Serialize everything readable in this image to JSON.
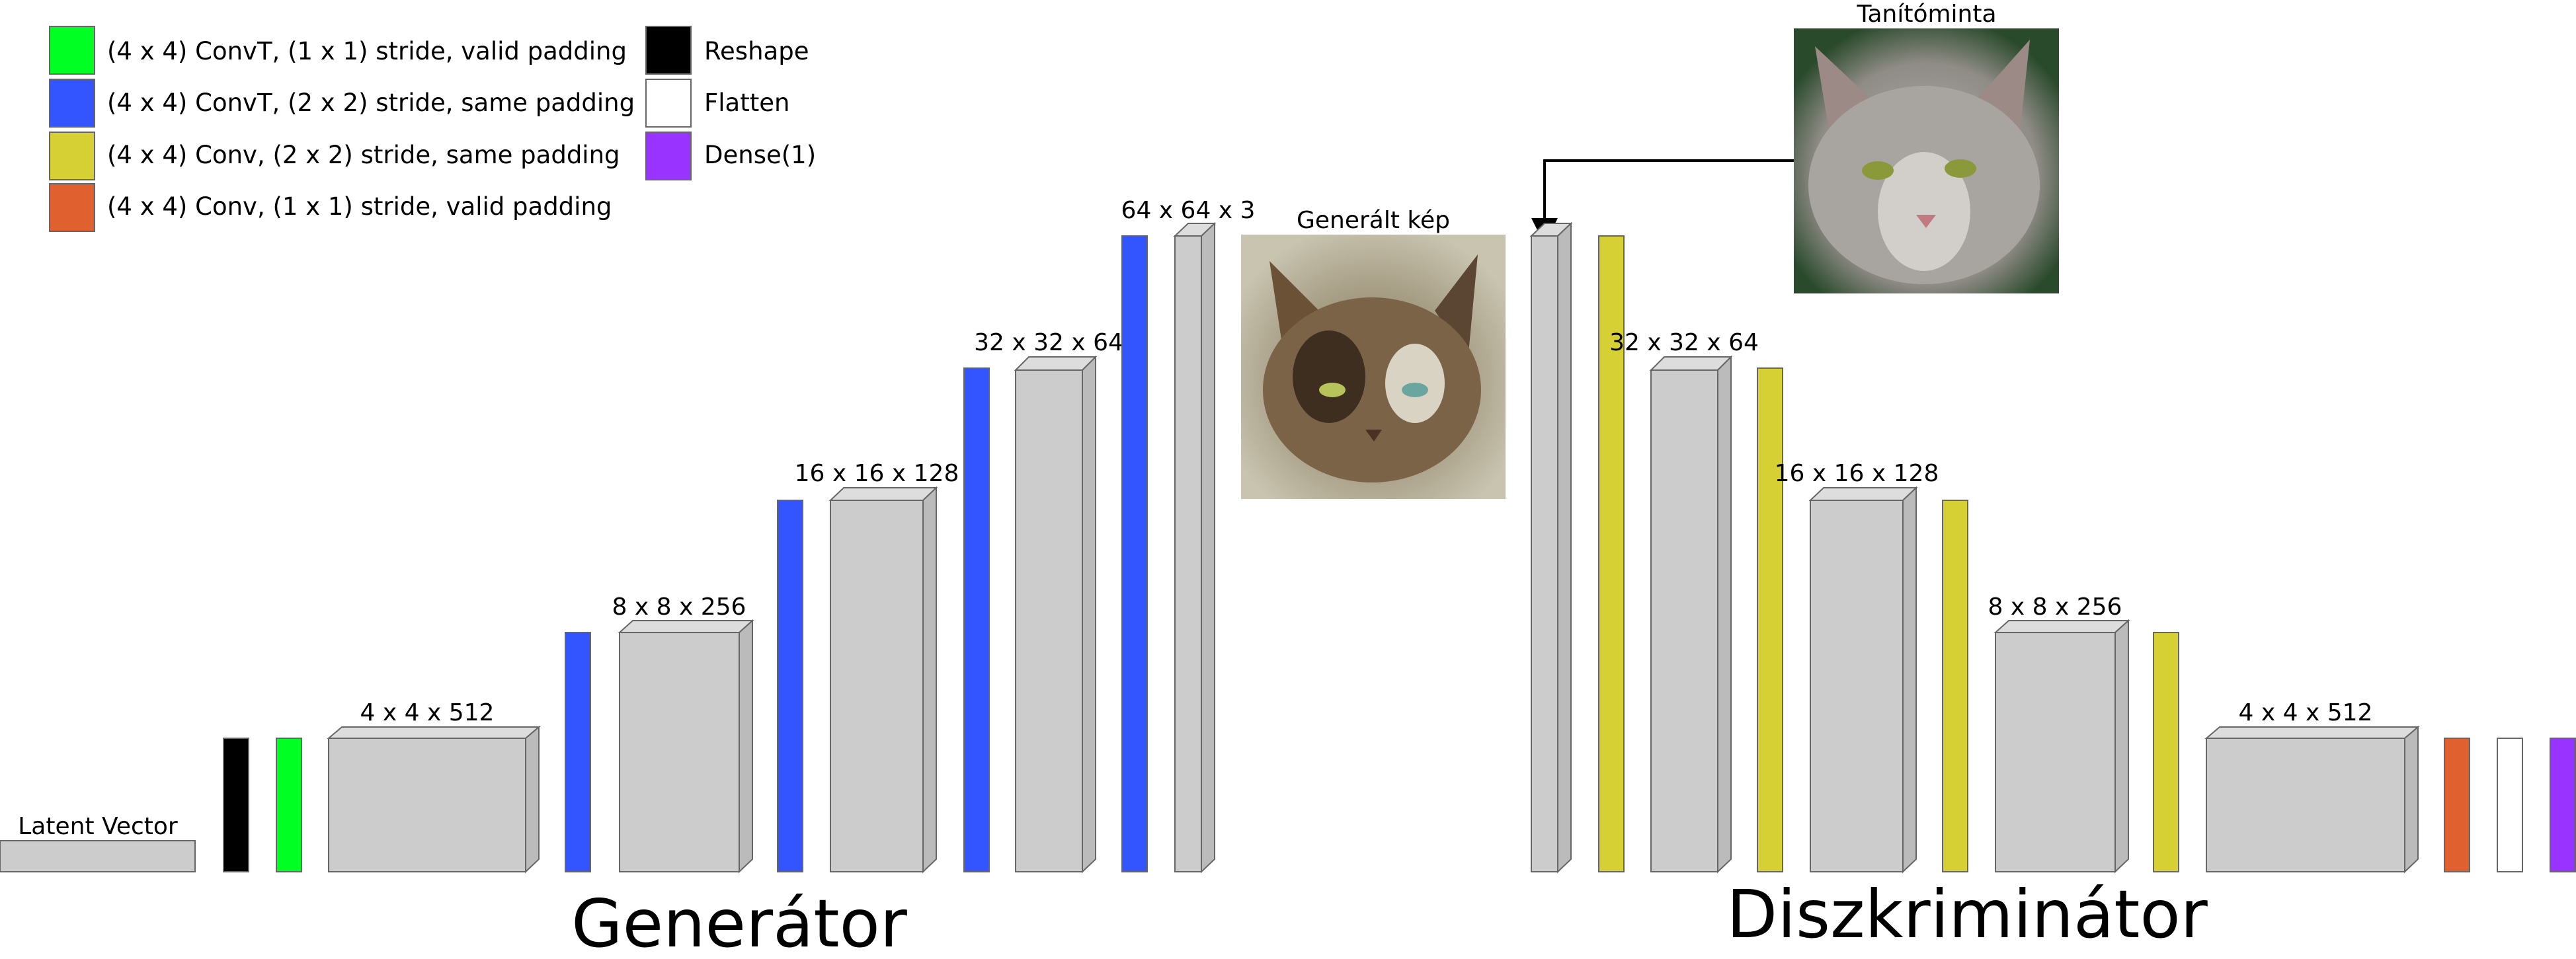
{
  "legend": [
    {
      "color": "#00ff22",
      "label": "(4 x 4) ConvT, (1 x 1) stride, valid padding"
    },
    {
      "color": "#3355ff",
      "label": "(4 x 4) ConvT, (2 x 2) stride, same padding"
    },
    {
      "color": "#d6d034",
      "label": "(4 x 4) Conv, (2 x 2) stride, same padding"
    },
    {
      "color": "#e06030",
      "label": "(4 x 4) Conv, (1 x 1) stride, valid padding"
    },
    {
      "color": "#000000",
      "label": "Reshape"
    },
    {
      "color": "#ffffff",
      "label": "Flatten"
    },
    {
      "color": "#9933ff",
      "label": "Dense(1)"
    }
  ],
  "generator": {
    "title": "Generátor",
    "latent_label": "Latent Vector",
    "block_labels": [
      "4 x 4 x 512",
      "8 x 8 x 256",
      "16 x 16 x 128",
      "32 x 32 x 64",
      "64 x 64 x 3"
    ]
  },
  "discriminator": {
    "title": "Diszkriminátor",
    "block_labels": [
      "32 x 32 x 64",
      "16 x 16 x 128",
      "8 x 8 x 256",
      "4 x 4 x 512"
    ]
  },
  "images": {
    "generated_label": "Generált kép",
    "training_label": "Tanítóminta"
  },
  "colors": {
    "block_fill": "#cccccc",
    "block_top": "#dddddd",
    "block_side": "#bbbbbb",
    "outline": "#666666"
  }
}
